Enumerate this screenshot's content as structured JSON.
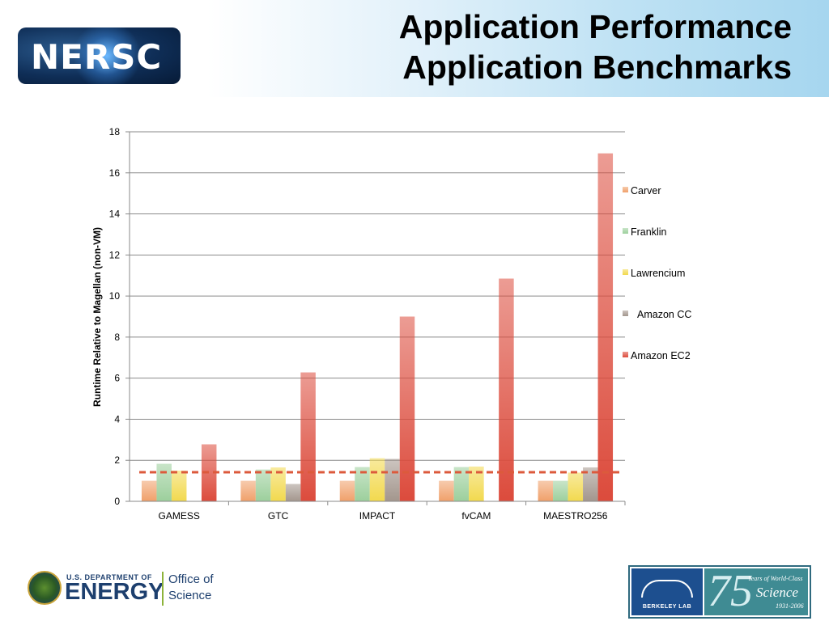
{
  "header": {
    "logo_text": "NERSC",
    "title_line1": "Application Performance",
    "title_line2": "Application Benchmarks"
  },
  "footer": {
    "doe_department": "U.S. DEPARTMENT OF",
    "doe_energy": "ENERGY",
    "doe_office_line1": "Office of",
    "doe_office_line2": "Science",
    "lab_name": "BERKELEY LAB",
    "lab_75": "75",
    "lab_years": "Years of World-Class",
    "lab_science": "Science",
    "lab_dates": "1931-2006"
  },
  "chart_data": {
    "type": "bar",
    "title": "",
    "xlabel": "",
    "ylabel": "Runtime Relative to Magellan (non-VM)",
    "ylim": [
      0,
      18
    ],
    "yticks": [
      0,
      2,
      4,
      6,
      8,
      10,
      12,
      14,
      16,
      18
    ],
    "grid": true,
    "legend_position": "right",
    "categories": [
      "GAMESS",
      "GTC",
      "IMPACT",
      "fvCAM",
      "MAESTRO256"
    ],
    "series": [
      {
        "name": "Carver",
        "color": "#f0a06a",
        "values": [
          1.0,
          1.0,
          1.0,
          1.0,
          1.0
        ]
      },
      {
        "name": "Franklin",
        "color": "#9ccf9c",
        "values": [
          1.83,
          1.55,
          1.67,
          1.67,
          1.0
        ]
      },
      {
        "name": "Lawrencium",
        "color": "#f2d94e",
        "values": [
          1.5,
          1.65,
          2.1,
          1.7,
          1.4
        ]
      },
      {
        "name": "Amazon CC",
        "color": "#a3968d",
        "values": [
          0,
          0.85,
          2.07,
          0,
          1.65
        ]
      },
      {
        "name": "Amazon EC2",
        "color": "#dc4b3c",
        "values": [
          2.78,
          6.28,
          9.0,
          10.85,
          16.95
        ]
      }
    ],
    "reference_line": {
      "value": 1.42,
      "color": "#dc5a3c",
      "style": "dashed"
    }
  }
}
